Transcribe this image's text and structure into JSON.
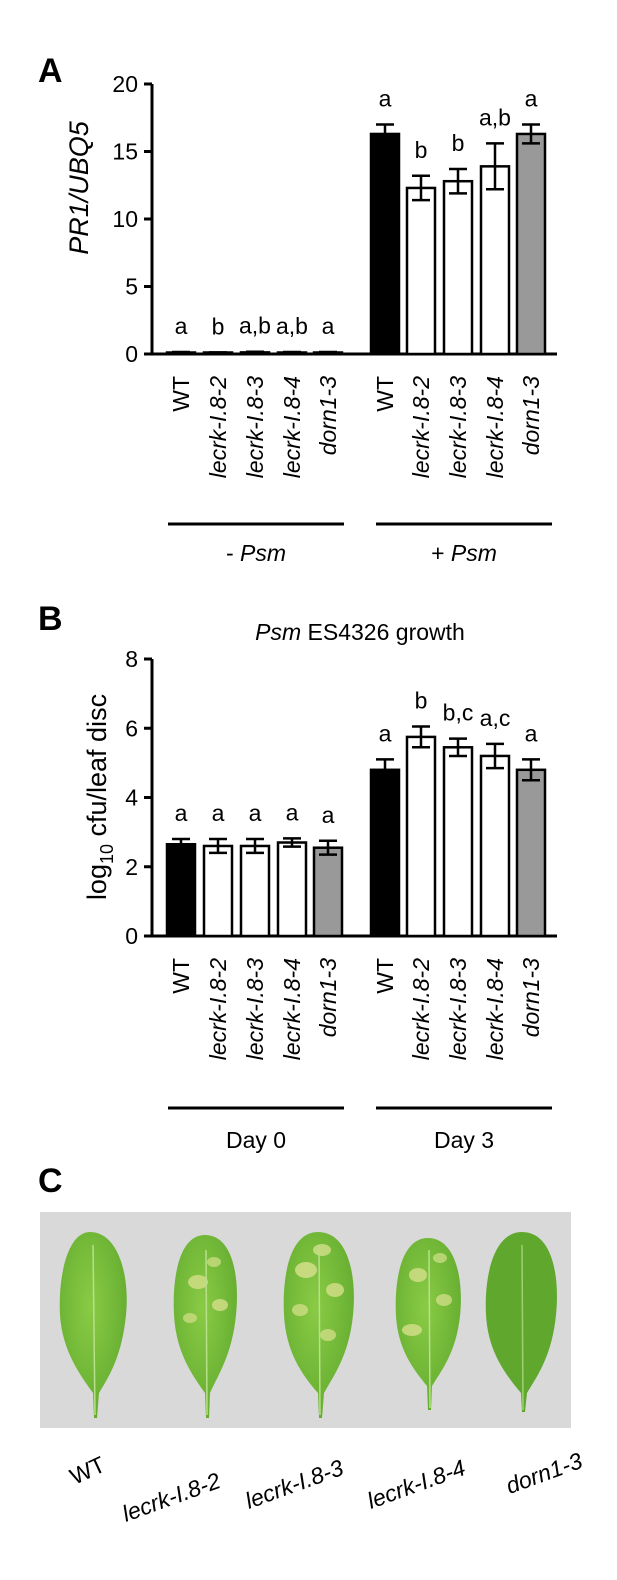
{
  "panels": {
    "a": {
      "letter": "A",
      "ylabel": "PR1/UBQ5",
      "groups": [
        {
          "label_prefix": "- ",
          "label_italic": "Psm"
        },
        {
          "label_prefix": "+ ",
          "label_italic": "Psm"
        }
      ]
    },
    "b": {
      "letter": "B",
      "title_italic": "Psm",
      "title_rest": " ES4326 growth",
      "ylabel_base": "log",
      "ylabel_sub": "10",
      "ylabel_rest": " cfu/leaf disc",
      "groups": [
        {
          "label": "Day 0"
        },
        {
          "label": "Day 3"
        }
      ]
    },
    "c": {
      "letter": "C",
      "leaves": [
        "WT",
        "lecrk-I.8-2",
        "lecrk-I.8-3",
        "lecrk-I.8-4",
        "dorn1-3"
      ]
    }
  },
  "colors": {
    "wt": "#000000",
    "lecrk": "#ffffff",
    "dorn": "#999999",
    "photo_bg": "#d9d9d9",
    "leaf": "#7cbf3b",
    "leaf_dark": "#5fa82d",
    "chlorosis": "#d4df8a"
  },
  "chart_data": [
    {
      "type": "bar",
      "title": "",
      "xlabel": "",
      "ylabel": "PR1/UBQ5",
      "ylim": [
        0,
        20
      ],
      "yticks": [
        0,
        5,
        10,
        15,
        20
      ],
      "categories": [
        "WT",
        "lecrk-I.8-2",
        "lecrk-I.8-3",
        "lecrk-I.8-4",
        "dorn1-3",
        "WT",
        "lecrk-I.8-2",
        "lecrk-I.8-3",
        "lecrk-I.8-4",
        "dorn1-3"
      ],
      "italic_categories": [
        false,
        true,
        true,
        true,
        true,
        false,
        true,
        true,
        true,
        true
      ],
      "groups": [
        "- Psm",
        "+ Psm"
      ],
      "values": [
        0.1,
        0.08,
        0.12,
        0.1,
        0.1,
        16.3,
        12.3,
        12.8,
        13.9,
        16.3
      ],
      "errors": [
        0.05,
        0.04,
        0.05,
        0.05,
        0.05,
        0.7,
        0.9,
        0.9,
        1.7,
        0.7
      ],
      "fills": [
        "wt",
        "lecrk",
        "lecrk",
        "lecrk",
        "dorn",
        "wt",
        "lecrk",
        "lecrk",
        "lecrk",
        "dorn"
      ],
      "significance": [
        "a",
        "b",
        "a,b",
        "a,b",
        "a",
        "a",
        "b",
        "b",
        "a,b",
        "a"
      ],
      "grid": false,
      "legend": "none"
    },
    {
      "type": "bar",
      "title": "Psm ES4326 growth",
      "xlabel": "",
      "ylabel": "log10 cfu/leaf disc",
      "ylim": [
        0,
        8
      ],
      "yticks": [
        0,
        2,
        4,
        6,
        8
      ],
      "categories": [
        "WT",
        "lecrk-I.8-2",
        "lecrk-I.8-3",
        "lecrk-I.8-4",
        "dorn1-3",
        "WT",
        "lecrk-I.8-2",
        "lecrk-I.8-3",
        "lecrk-I.8-4",
        "dorn1-3"
      ],
      "italic_categories": [
        false,
        true,
        true,
        true,
        true,
        false,
        true,
        true,
        true,
        true
      ],
      "groups": [
        "Day 0",
        "Day 3"
      ],
      "values": [
        2.65,
        2.6,
        2.6,
        2.7,
        2.55,
        4.8,
        5.75,
        5.45,
        5.2,
        4.8
      ],
      "errors": [
        0.15,
        0.2,
        0.2,
        0.12,
        0.2,
        0.3,
        0.3,
        0.25,
        0.35,
        0.3
      ],
      "fills": [
        "wt",
        "lecrk",
        "lecrk",
        "lecrk",
        "dorn",
        "wt",
        "lecrk",
        "lecrk",
        "lecrk",
        "dorn"
      ],
      "significance": [
        "a",
        "a",
        "a",
        "a",
        "a",
        "a",
        "b",
        "b,c",
        "a,c",
        "a"
      ],
      "grid": false,
      "legend": "none"
    }
  ]
}
